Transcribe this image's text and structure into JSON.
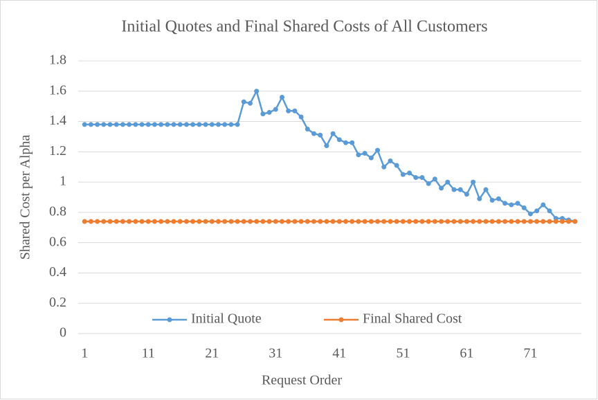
{
  "chart_data": {
    "type": "line",
    "title": "Initial Quotes and Final Shared Costs of All Customers",
    "x_label": "Request Order",
    "y_label": "Shared Cost per Alpha",
    "x": [
      1,
      2,
      3,
      4,
      5,
      6,
      7,
      8,
      9,
      10,
      11,
      12,
      13,
      14,
      15,
      16,
      17,
      18,
      19,
      20,
      21,
      22,
      23,
      24,
      25,
      26,
      27,
      28,
      29,
      30,
      31,
      32,
      33,
      34,
      35,
      36,
      37,
      38,
      39,
      40,
      41,
      42,
      43,
      44,
      45,
      46,
      47,
      48,
      49,
      50,
      51,
      52,
      53,
      54,
      55,
      56,
      57,
      58,
      59,
      60,
      61,
      62,
      63,
      64,
      65,
      66,
      67,
      68,
      69,
      70,
      71,
      72,
      73,
      74,
      75,
      76,
      77,
      78
    ],
    "xlim": [
      0,
      79
    ],
    "xticks": [
      1,
      11,
      21,
      31,
      41,
      51,
      61,
      71
    ],
    "ylim": [
      0,
      1.8
    ],
    "yticks": [
      0,
      0.2,
      0.4,
      0.6,
      0.8,
      1,
      1.2,
      1.4,
      1.6,
      1.8
    ],
    "grid": true,
    "legend": "bottom",
    "series": [
      {
        "name": "Initial Quote",
        "color": "#5b9bd5",
        "values": [
          1.38,
          1.38,
          1.38,
          1.38,
          1.38,
          1.38,
          1.38,
          1.38,
          1.38,
          1.38,
          1.38,
          1.38,
          1.38,
          1.38,
          1.38,
          1.38,
          1.38,
          1.38,
          1.38,
          1.38,
          1.38,
          1.38,
          1.38,
          1.38,
          1.38,
          1.53,
          1.52,
          1.6,
          1.45,
          1.46,
          1.48,
          1.56,
          1.47,
          1.47,
          1.43,
          1.35,
          1.32,
          1.31,
          1.24,
          1.32,
          1.28,
          1.26,
          1.26,
          1.18,
          1.19,
          1.16,
          1.21,
          1.1,
          1.14,
          1.11,
          1.05,
          1.06,
          1.03,
          1.03,
          0.99,
          1.02,
          0.96,
          1.0,
          0.95,
          0.95,
          0.92,
          1.0,
          0.89,
          0.95,
          0.88,
          0.89,
          0.86,
          0.85,
          0.86,
          0.83,
          0.79,
          0.81,
          0.85,
          0.81,
          0.76,
          0.76,
          0.75,
          0.74
        ]
      },
      {
        "name": "Final Shared Cost",
        "color": "#ed7d31",
        "values": [
          0.74,
          0.74,
          0.74,
          0.74,
          0.74,
          0.74,
          0.74,
          0.74,
          0.74,
          0.74,
          0.74,
          0.74,
          0.74,
          0.74,
          0.74,
          0.74,
          0.74,
          0.74,
          0.74,
          0.74,
          0.74,
          0.74,
          0.74,
          0.74,
          0.74,
          0.74,
          0.74,
          0.74,
          0.74,
          0.74,
          0.74,
          0.74,
          0.74,
          0.74,
          0.74,
          0.74,
          0.74,
          0.74,
          0.74,
          0.74,
          0.74,
          0.74,
          0.74,
          0.74,
          0.74,
          0.74,
          0.74,
          0.74,
          0.74,
          0.74,
          0.74,
          0.74,
          0.74,
          0.74,
          0.74,
          0.74,
          0.74,
          0.74,
          0.74,
          0.74,
          0.74,
          0.74,
          0.74,
          0.74,
          0.74,
          0.74,
          0.74,
          0.74,
          0.74,
          0.74,
          0.74,
          0.74,
          0.74,
          0.74,
          0.74,
          0.74,
          0.74,
          0.74
        ]
      }
    ]
  }
}
